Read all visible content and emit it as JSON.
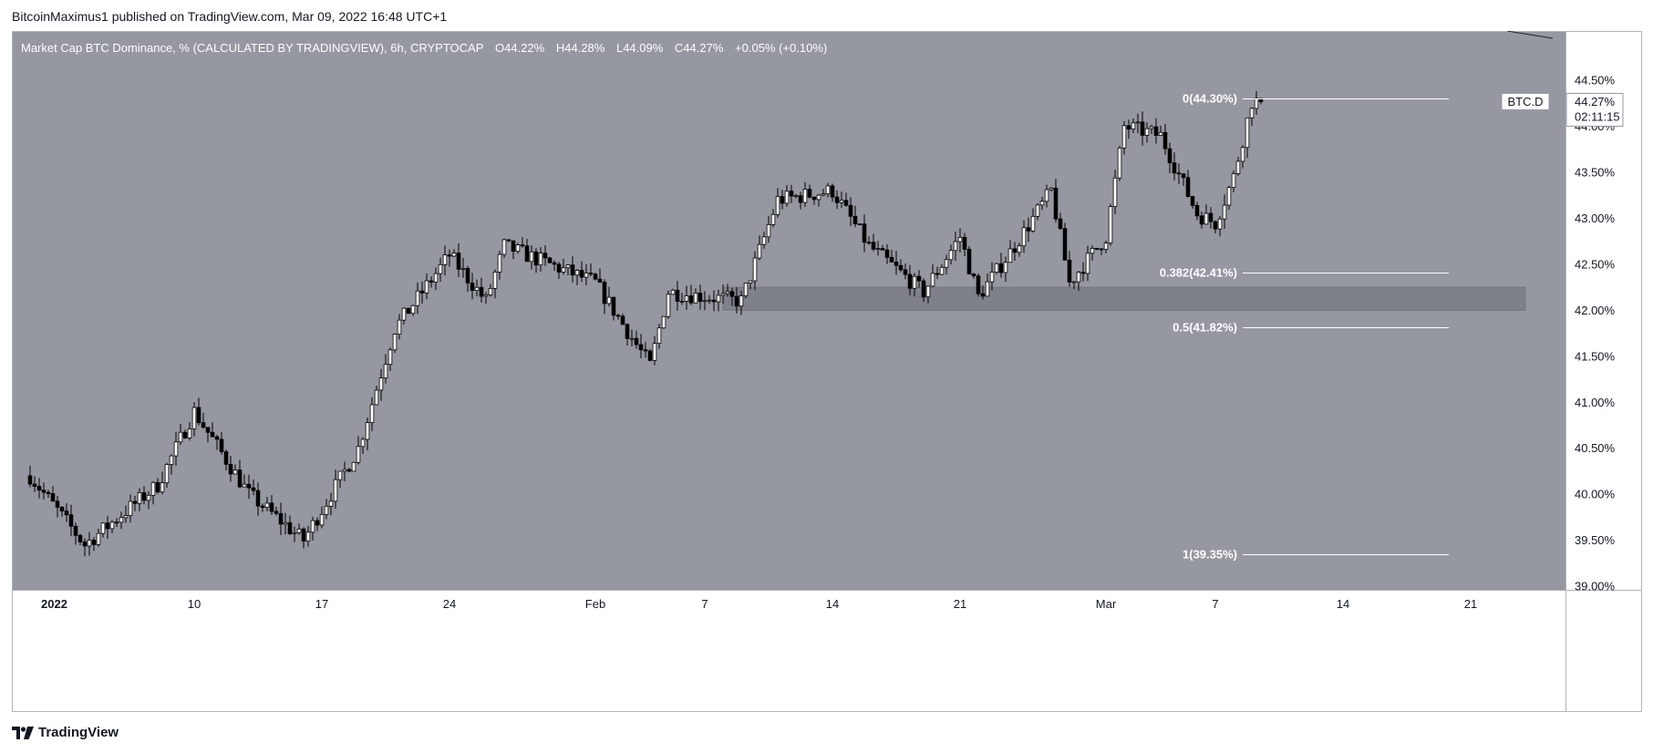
{
  "header": {
    "published_text": "BitcoinMaximus1 published on TradingView.com, Mar 09, 2022 16:48 UTC+1"
  },
  "legend": {
    "title": "Market Cap BTC Dominance, % (CALCULATED BY TRADINGVIEW), 6h, CRYPTOCAP",
    "o_label": "O",
    "o_value": "44.22%",
    "h_label": "H",
    "h_value": "44.28%",
    "l_label": "L",
    "l_value": "44.09%",
    "c_label": "C",
    "c_value": "44.27%",
    "change": "+0.05% (+0.10%)"
  },
  "price_tag": {
    "symbol": "BTC.D",
    "price": "44.27%",
    "countdown": "02:11:15"
  },
  "footer": {
    "brand": "TradingView",
    "logo_icon": "tradingview-logo-icon"
  },
  "colors": {
    "plot_background": "#9598a1",
    "candle_up": "#ffffff",
    "candle_down": "#000000",
    "fib_line": "#ffffff",
    "zone_fill": "#7c7f88"
  },
  "chart_data": {
    "type": "candlestick",
    "title": "Market Cap BTC Dominance, % (CALCULATED BY TRADINGVIEW), 6h, CRYPTOCAP",
    "timeframe": "6h",
    "ylim": [
      39.0,
      44.75
    ],
    "y_ticks": [
      "44.50%",
      "44.00%",
      "43.50%",
      "43.00%",
      "42.50%",
      "42.00%",
      "41.50%",
      "41.00%",
      "40.50%",
      "40.00%",
      "39.50%",
      "39.00%"
    ],
    "y_tick_values": [
      44.5,
      44.0,
      43.5,
      43.0,
      42.5,
      42.0,
      41.5,
      41.0,
      40.5,
      40.0,
      39.5,
      39.0
    ],
    "x_ticks": [
      {
        "label": "2022",
        "date": "2022-01-01"
      },
      {
        "label": "10",
        "date": "2022-01-10"
      },
      {
        "label": "17",
        "date": "2022-01-17"
      },
      {
        "label": "24",
        "date": "2022-01-24"
      },
      {
        "label": "Feb",
        "date": "2022-02-01"
      },
      {
        "label": "7",
        "date": "2022-02-07"
      },
      {
        "label": "14",
        "date": "2022-02-14"
      },
      {
        "label": "21",
        "date": "2022-02-21"
      },
      {
        "label": "Mar",
        "date": "2022-03-01"
      },
      {
        "label": "7",
        "date": "2022-03-07"
      },
      {
        "label": "14",
        "date": "2022-03-14"
      },
      {
        "label": "21",
        "date": "2022-03-21"
      }
    ],
    "x_range": [
      "2021-12-31",
      "2022-03-25"
    ],
    "fibonacci_levels": [
      {
        "label": "0(44.30%)",
        "ratio": 0,
        "value": 44.3
      },
      {
        "label": "0.382(42.41%)",
        "ratio": 0.382,
        "value": 42.41
      },
      {
        "label": "0.5(41.82%)",
        "ratio": 0.5,
        "value": 41.82
      },
      {
        "label": "1(39.35%)",
        "ratio": 1,
        "value": 39.35
      }
    ],
    "support_zone": {
      "low": 42.0,
      "high": 42.25,
      "start": "2022-02-08",
      "end": "2022-03-24"
    },
    "last_price": 44.27,
    "trend_key_points": [
      {
        "date": "2022-01-01",
        "value": 40.2
      },
      {
        "date": "2022-01-04",
        "value": 39.45
      },
      {
        "date": "2022-01-08",
        "value": 40.1
      },
      {
        "date": "2022-01-10",
        "value": 40.9
      },
      {
        "date": "2022-01-13",
        "value": 40.0
      },
      {
        "date": "2022-01-16",
        "value": 39.5
      },
      {
        "date": "2022-01-19",
        "value": 40.5
      },
      {
        "date": "2022-01-21",
        "value": 41.8
      },
      {
        "date": "2022-01-24",
        "value": 42.6
      },
      {
        "date": "2022-01-26",
        "value": 42.1
      },
      {
        "date": "2022-01-27",
        "value": 42.7
      },
      {
        "date": "2022-02-01",
        "value": 42.3
      },
      {
        "date": "2022-02-04",
        "value": 41.4
      },
      {
        "date": "2022-02-05",
        "value": 42.2
      },
      {
        "date": "2022-02-09",
        "value": 42.1
      },
      {
        "date": "2022-02-11",
        "value": 43.2
      },
      {
        "date": "2022-02-14",
        "value": 43.3
      },
      {
        "date": "2022-02-16",
        "value": 42.7
      },
      {
        "date": "2022-02-19",
        "value": 42.2
      },
      {
        "date": "2022-02-21",
        "value": 42.8
      },
      {
        "date": "2022-02-22",
        "value": 42.15
      },
      {
        "date": "2022-02-24",
        "value": 42.7
      },
      {
        "date": "2022-02-26",
        "value": 43.3
      },
      {
        "date": "2022-02-27",
        "value": 42.3
      },
      {
        "date": "2022-03-01",
        "value": 42.8
      },
      {
        "date": "2022-03-02",
        "value": 44.0
      },
      {
        "date": "2022-03-04",
        "value": 43.9
      },
      {
        "date": "2022-03-06",
        "value": 43.05
      },
      {
        "date": "2022-03-07",
        "value": 42.95
      },
      {
        "date": "2022-03-08",
        "value": 43.45
      },
      {
        "date": "2022-03-09",
        "value": 44.27
      }
    ]
  }
}
